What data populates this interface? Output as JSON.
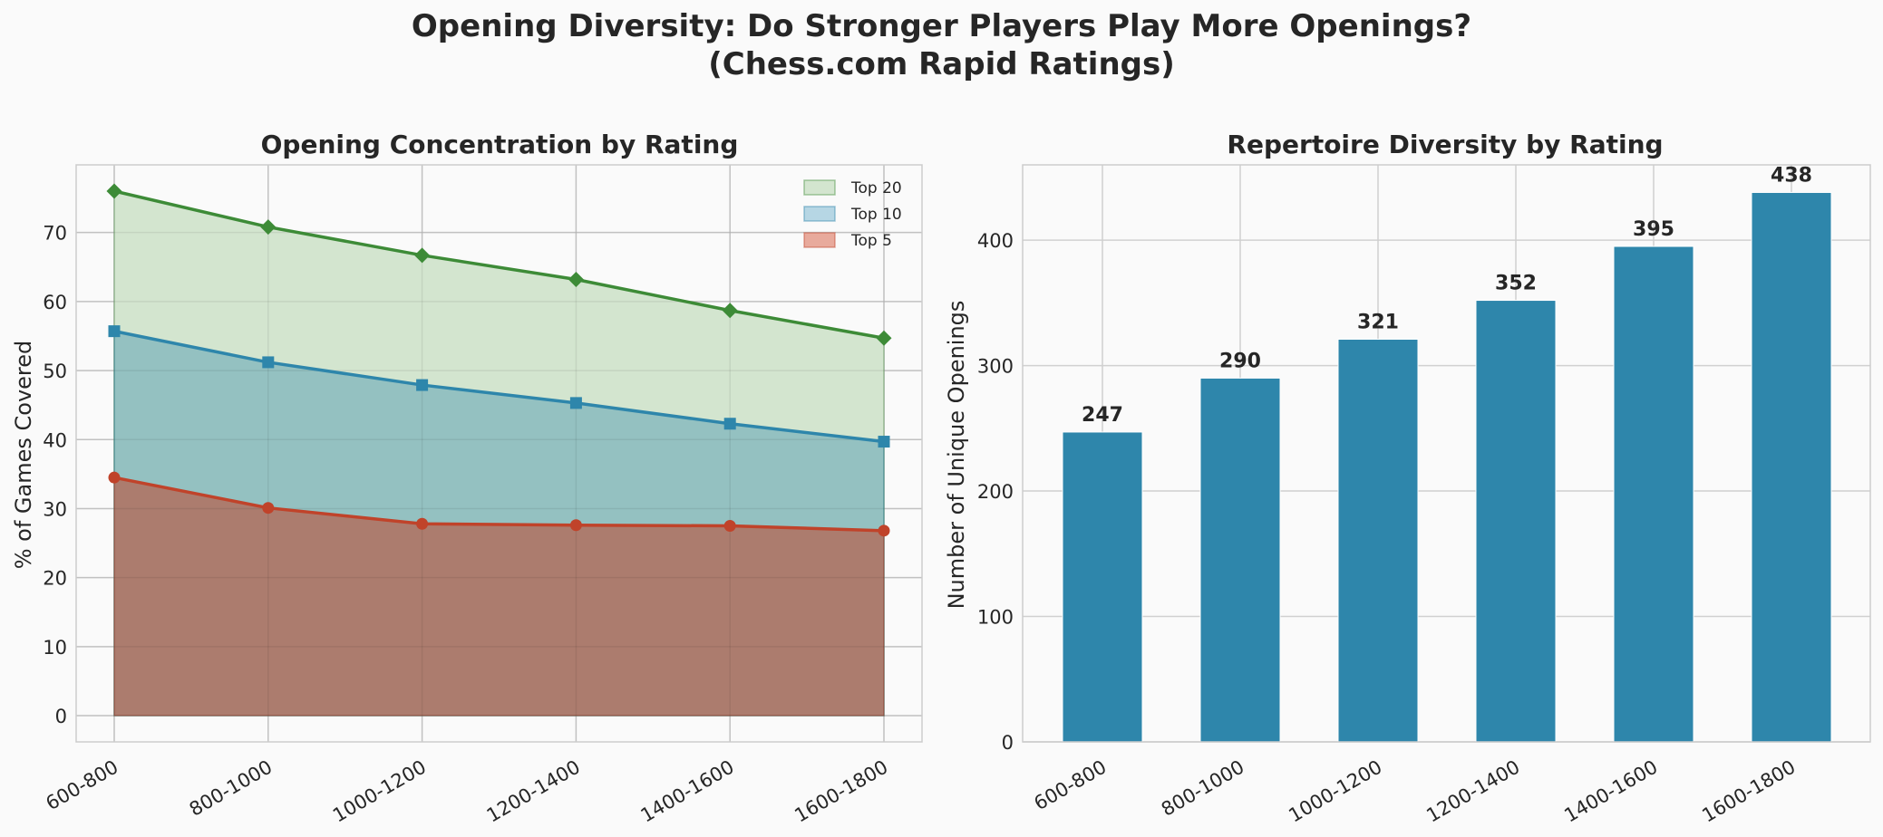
{
  "figure": {
    "title_line1": "Opening Diversity: Do Stronger Players Play More Openings?",
    "title_line2": "(Chess.com Rapid Ratings)"
  },
  "chart_data": [
    {
      "type": "area",
      "title": "Opening Concentration by Rating",
      "xlabel": "",
      "ylabel": "% of Games Covered",
      "categories": [
        "600-800",
        "800-1000",
        "1000-1200",
        "1200-1400",
        "1400-1600",
        "1600-1800"
      ],
      "ylim": [
        -3.8,
        79.8
      ],
      "yticks": [
        0,
        10,
        20,
        30,
        40,
        50,
        60,
        70
      ],
      "grid": true,
      "legend_position": "top-right",
      "series": [
        {
          "name": "Top 20",
          "values": [
            76.0,
            70.8,
            66.7,
            63.2,
            58.7,
            54.7
          ],
          "color": "#3d8b37",
          "fill": "#d2e5cf",
          "marker": "diamond"
        },
        {
          "name": "Top 10",
          "values": [
            55.7,
            51.2,
            47.9,
            45.3,
            42.3,
            39.7
          ],
          "color": "#2e86ab",
          "fill": "#a6d0db",
          "marker": "square"
        },
        {
          "name": "Top 5",
          "values": [
            34.5,
            30.1,
            27.8,
            27.6,
            27.5,
            26.8
          ],
          "color": "#c0432a",
          "fill": "#e8aa9c",
          "marker": "circle"
        }
      ]
    },
    {
      "type": "bar",
      "title": "Repertoire Diversity by Rating",
      "xlabel": "",
      "ylabel": "Number of Unique Openings",
      "categories": [
        "600-800",
        "800-1000",
        "1000-1200",
        "1200-1400",
        "1400-1600",
        "1600-1800"
      ],
      "values": [
        247,
        290,
        321,
        352,
        395,
        438
      ],
      "data_labels": [
        "247",
        "290",
        "321",
        "352",
        "395",
        "438"
      ],
      "ylim": [
        0,
        460
      ],
      "yticks": [
        0,
        100,
        200,
        300,
        400
      ],
      "grid": true,
      "color": "#2e86ab"
    }
  ]
}
